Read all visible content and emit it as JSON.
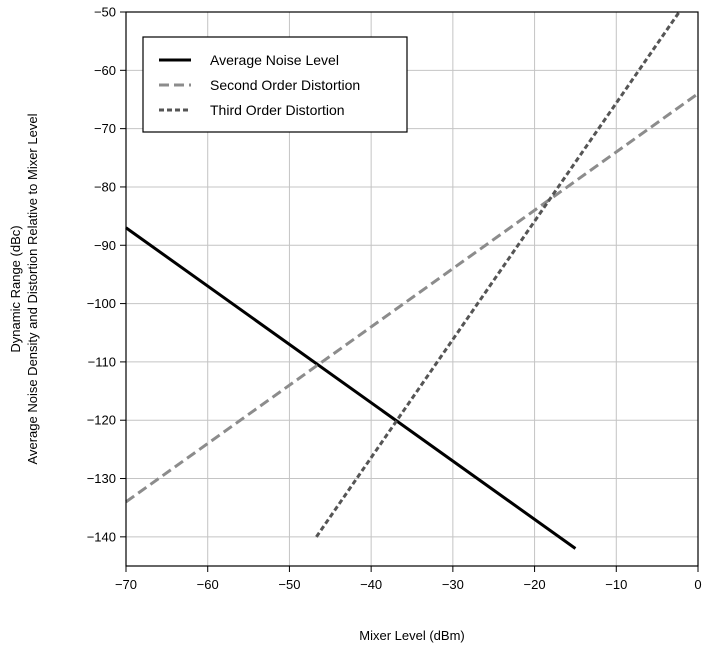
{
  "chart_data": {
    "type": "line",
    "title": "",
    "xlabel": "Mixer Level (dBm)",
    "ylabel": [
      "Dynamic Range (dBc)",
      "Average Noise Density and Distortion Relative to Mixer Level"
    ],
    "xlim": [
      -70,
      0
    ],
    "ylim": [
      -145,
      -50
    ],
    "xticks": [
      -70,
      -60,
      -50,
      -40,
      -30,
      -20,
      -10,
      0
    ],
    "yticks": [
      -50,
      -60,
      -70,
      -80,
      -90,
      -100,
      -110,
      -120,
      -130,
      -140
    ],
    "x_tick_labels": [
      "−70",
      "−60",
      "−50",
      "−40",
      "−30",
      "−20",
      "−10",
      "0"
    ],
    "y_tick_labels": [
      "−50",
      "−60",
      "−70",
      "−80",
      "−90",
      "−100",
      "−110",
      "−120",
      "−130",
      "−140"
    ],
    "grid": true,
    "legend_position": "top-left",
    "series": [
      {
        "name": "Average Noise Level",
        "style": "solid",
        "color": "#000000",
        "x": [
          -70,
          -15
        ],
        "y": [
          -87,
          -142
        ]
      },
      {
        "name": "Second Order Distortion",
        "style": "long-dash",
        "color": "#8c8c8c",
        "x": [
          -70,
          0
        ],
        "y": [
          -134,
          -64
        ]
      },
      {
        "name": "Third Order Distortion",
        "style": "short-dash",
        "color": "#555555",
        "x": [
          -46.7,
          -2.3
        ],
        "y": [
          -140,
          -50
        ]
      }
    ]
  }
}
